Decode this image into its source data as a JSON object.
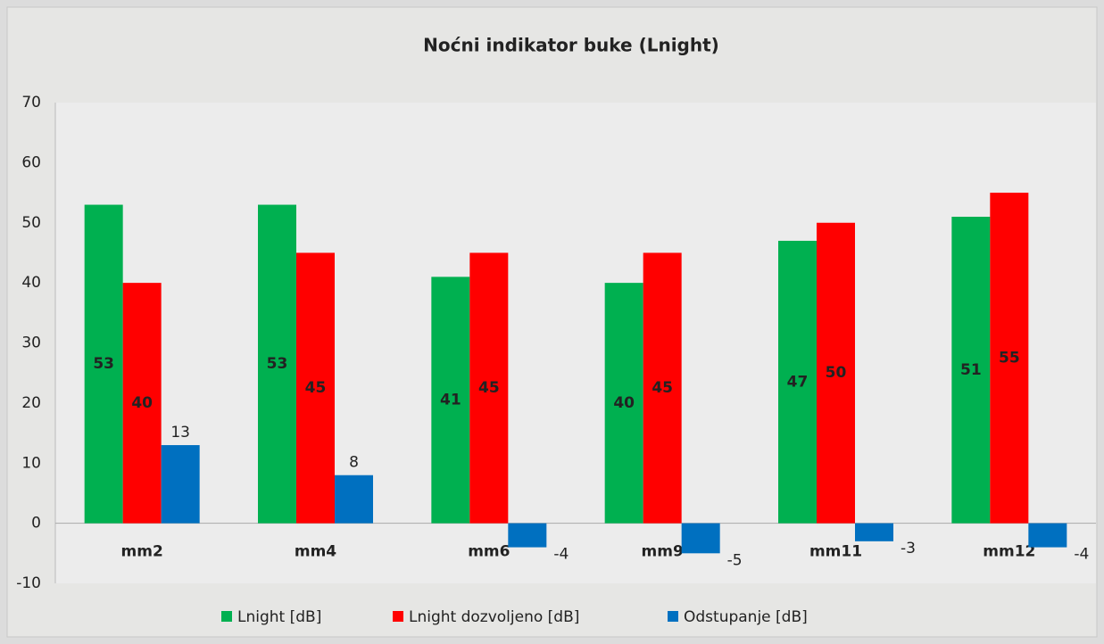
{
  "chart_data": {
    "type": "bar",
    "title": "Noćni indikator buke (Lnight)",
    "categories": [
      "mm2",
      "mm4",
      "mm6",
      "mm9",
      "mm11",
      "mm12"
    ],
    "series": [
      {
        "name": "Lnight [dB]",
        "color": "#00b050",
        "values": [
          53,
          53,
          41,
          40,
          47,
          51
        ]
      },
      {
        "name": "Lnight dozvoljeno [dB]",
        "color": "#ff0000",
        "values": [
          40,
          45,
          45,
          45,
          50,
          55
        ]
      },
      {
        "name": "Odstupanje [dB]",
        "color": "#0070c0",
        "values": [
          13,
          8,
          -4,
          -5,
          -3,
          -4
        ]
      }
    ],
    "ylim": [
      -10,
      70
    ],
    "yticks": [
      -10,
      0,
      10,
      20,
      30,
      40,
      50,
      60,
      70
    ],
    "grid": false,
    "legend": "bottom"
  }
}
